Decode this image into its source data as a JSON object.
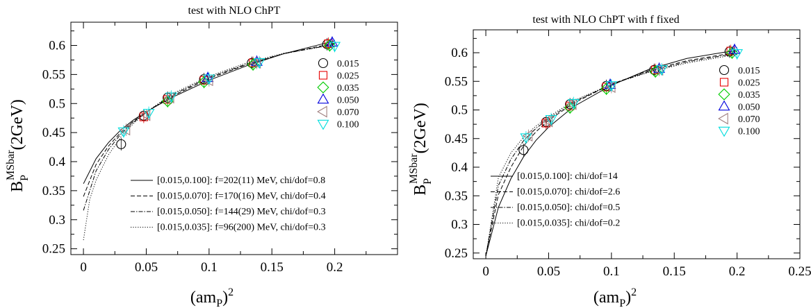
{
  "chart_data": [
    {
      "type": "scatter",
      "title": "test with NLO ChPT",
      "xlabel_base": "(am",
      "xlabel_sub": "P",
      "xlabel_close": ")",
      "xlabel_sup": "2",
      "ylabel_base": "B",
      "ylabel_sub": "P",
      "ylabel_sup": "MSbar",
      "ylabel_tail": "(2GeV)",
      "xlim": [
        -0.01,
        0.25
      ],
      "ylim": [
        0.24,
        0.64
      ],
      "xticks": [
        0,
        0.05,
        0.1,
        0.15,
        0.2
      ],
      "xticklabels": [
        "0",
        "0.05",
        "0.1",
        "0.15",
        "0.2"
      ],
      "yticks": [
        0.25,
        0.3,
        0.35,
        0.4,
        0.45,
        0.5,
        0.55,
        0.6
      ],
      "yticklabels": [
        "0.25",
        "0.3",
        "0.35",
        "0.4",
        "0.45",
        "0.5",
        "0.55",
        "0.6"
      ],
      "series": [
        {
          "name": "0.015",
          "marker": "circle",
          "color": "#000000",
          "x": [
            0.03,
            0.048,
            0.067,
            0.096,
            0.134,
            0.194
          ],
          "y": [
            0.43,
            0.479,
            0.51,
            0.542,
            0.57,
            0.602
          ]
        },
        {
          "name": "0.025",
          "marker": "square",
          "color": "#e60000",
          "x": [
            0.048,
            0.067,
            0.096,
            0.135,
            0.195
          ],
          "y": [
            0.477,
            0.507,
            0.54,
            0.57,
            0.603
          ]
        },
        {
          "name": "0.035",
          "marker": "diamond",
          "color": "#00cc00",
          "x": [
            0.067,
            0.096,
            0.135,
            0.196
          ],
          "y": [
            0.504,
            0.537,
            0.567,
            0.6
          ]
        },
        {
          "name": "0.050",
          "marker": "triangle-up",
          "color": "#0000dd",
          "x": [
            0.099,
            0.138,
            0.198
          ],
          "y": [
            0.544,
            0.572,
            0.605
          ]
        },
        {
          "name": "0.070",
          "marker": "triangle-left",
          "color": "#a08080",
          "x": [
            0.034,
            0.05,
            0.069,
            0.1,
            0.138
          ],
          "y": [
            0.455,
            0.48,
            0.51,
            0.54,
            0.57
          ]
        },
        {
          "name": "0.100",
          "marker": "triangle-down",
          "color": "#00dddd",
          "x": [
            0.032,
            0.052,
            0.07,
            0.1,
            0.14,
            0.2
          ],
          "y": [
            0.452,
            0.484,
            0.512,
            0.543,
            0.571,
            0.599
          ]
        }
      ],
      "fits": [
        {
          "label": "[0.015,0.100]: f=202(11) MeV, chi/dof=0.8",
          "style": "solid",
          "x": [
            0,
            0.01,
            0.02,
            0.03,
            0.04,
            0.05,
            0.07,
            0.1,
            0.13,
            0.16,
            0.2
          ],
          "y": [
            0.362,
            0.405,
            0.433,
            0.455,
            0.472,
            0.486,
            0.51,
            0.54,
            0.565,
            0.586,
            0.608
          ]
        },
        {
          "label": "[0.015,0.070]: f=170(16) MeV, chi/dof=0.4",
          "style": "dashed",
          "x": [
            0,
            0.01,
            0.02,
            0.03,
            0.04,
            0.05,
            0.07,
            0.1,
            0.13,
            0.16,
            0.2
          ],
          "y": [
            0.34,
            0.395,
            0.427,
            0.451,
            0.47,
            0.485,
            0.512,
            0.543,
            0.567,
            0.586,
            0.604
          ]
        },
        {
          "label": "[0.015,0.050]: f=144(29) MeV, chi/dof=0.3",
          "style": "dashdot",
          "x": [
            0,
            0.01,
            0.02,
            0.03,
            0.04,
            0.05,
            0.07,
            0.1,
            0.13,
            0.16,
            0.2
          ],
          "y": [
            0.316,
            0.384,
            0.421,
            0.448,
            0.468,
            0.485,
            0.514,
            0.545,
            0.568,
            0.586,
            0.602
          ]
        },
        {
          "label": "[0.015,0.035]: f=96(200) MeV, chi/dof=0.3",
          "style": "dotted",
          "x": [
            0,
            0.005,
            0.01,
            0.02,
            0.03,
            0.04,
            0.05,
            0.07,
            0.1,
            0.13,
            0.16,
            0.2
          ],
          "y": [
            0.265,
            0.335,
            0.368,
            0.412,
            0.443,
            0.466,
            0.485,
            0.516,
            0.547,
            0.57,
            0.587,
            0.601
          ]
        }
      ]
    },
    {
      "type": "scatter",
      "title": "test with NLO ChPT with f fixed",
      "xlabel_base": "(am",
      "xlabel_sub": "P",
      "xlabel_close": ")",
      "xlabel_sup": "2",
      "ylabel_base": "B",
      "ylabel_sub": "P",
      "ylabel_sup": "MSbar",
      "ylabel_tail": "(2GeV)",
      "xlim": [
        -0.01,
        0.25
      ],
      "ylim": [
        0.24,
        0.64
      ],
      "xticks": [
        0,
        0.05,
        0.1,
        0.15,
        0.2,
        0.25
      ],
      "xticklabels": [
        "0",
        "0.05",
        "0.1",
        "0.15",
        "0.2",
        "0.25"
      ],
      "yticks": [
        0.25,
        0.3,
        0.35,
        0.4,
        0.45,
        0.5,
        0.55,
        0.6
      ],
      "yticklabels": [
        "0.25",
        "0.3",
        "0.35",
        "0.4",
        "0.45",
        "0.5",
        "0.55",
        "0.6"
      ],
      "series": [
        {
          "name": "0.015",
          "marker": "circle",
          "color": "#000000",
          "x": [
            0.03,
            0.048,
            0.067,
            0.096,
            0.134,
            0.194
          ],
          "y": [
            0.43,
            0.479,
            0.51,
            0.542,
            0.57,
            0.602
          ]
        },
        {
          "name": "0.025",
          "marker": "square",
          "color": "#e60000",
          "x": [
            0.048,
            0.067,
            0.096,
            0.135,
            0.195
          ],
          "y": [
            0.477,
            0.507,
            0.54,
            0.57,
            0.603
          ]
        },
        {
          "name": "0.035",
          "marker": "diamond",
          "color": "#00cc00",
          "x": [
            0.067,
            0.096,
            0.135,
            0.196
          ],
          "y": [
            0.504,
            0.537,
            0.567,
            0.6
          ]
        },
        {
          "name": "0.050",
          "marker": "triangle-up",
          "color": "#0000dd",
          "x": [
            0.099,
            0.138,
            0.198
          ],
          "y": [
            0.544,
            0.572,
            0.605
          ]
        },
        {
          "name": "0.070",
          "marker": "triangle-left",
          "color": "#a08080",
          "x": [
            0.034,
            0.05,
            0.069,
            0.1,
            0.138
          ],
          "y": [
            0.455,
            0.48,
            0.51,
            0.54,
            0.57
          ]
        },
        {
          "name": "0.100",
          "marker": "triangle-down",
          "color": "#00dddd",
          "x": [
            0.032,
            0.052,
            0.07,
            0.1,
            0.14,
            0.2
          ],
          "y": [
            0.452,
            0.484,
            0.512,
            0.543,
            0.571,
            0.599
          ]
        }
      ],
      "fits": [
        {
          "label": "[0.015,0.100]: chi/dof=14",
          "style": "solid",
          "x": [
            0,
            0.01,
            0.02,
            0.03,
            0.04,
            0.05,
            0.07,
            0.1,
            0.13,
            0.16,
            0.19,
            0.2
          ],
          "y": [
            0.245,
            0.33,
            0.38,
            0.418,
            0.447,
            0.47,
            0.506,
            0.543,
            0.571,
            0.59,
            0.601,
            0.603
          ]
        },
        {
          "label": "[0.015,0.070]: chi/dof=2.6",
          "style": "dashed",
          "x": [
            0,
            0.01,
            0.02,
            0.03,
            0.04,
            0.05,
            0.07,
            0.1,
            0.13,
            0.16,
            0.2
          ],
          "y": [
            0.245,
            0.352,
            0.4,
            0.437,
            0.462,
            0.482,
            0.512,
            0.545,
            0.569,
            0.586,
            0.601
          ]
        },
        {
          "label": "[0.015,0.050]: chi/dof=0.5",
          "style": "dashdot",
          "x": [
            0,
            0.01,
            0.02,
            0.03,
            0.04,
            0.05,
            0.07,
            0.1,
            0.13,
            0.16,
            0.2
          ],
          "y": [
            0.245,
            0.368,
            0.414,
            0.446,
            0.468,
            0.485,
            0.514,
            0.545,
            0.567,
            0.584,
            0.599
          ]
        },
        {
          "label": "[0.015,0.035]: chi/dof=0.2",
          "style": "dotted",
          "x": [
            0,
            0.01,
            0.02,
            0.03,
            0.04,
            0.05,
            0.07,
            0.1,
            0.13,
            0.16,
            0.2
          ],
          "y": [
            0.245,
            0.382,
            0.425,
            0.452,
            0.472,
            0.488,
            0.516,
            0.545,
            0.566,
            0.582,
            0.597
          ]
        }
      ]
    }
  ]
}
